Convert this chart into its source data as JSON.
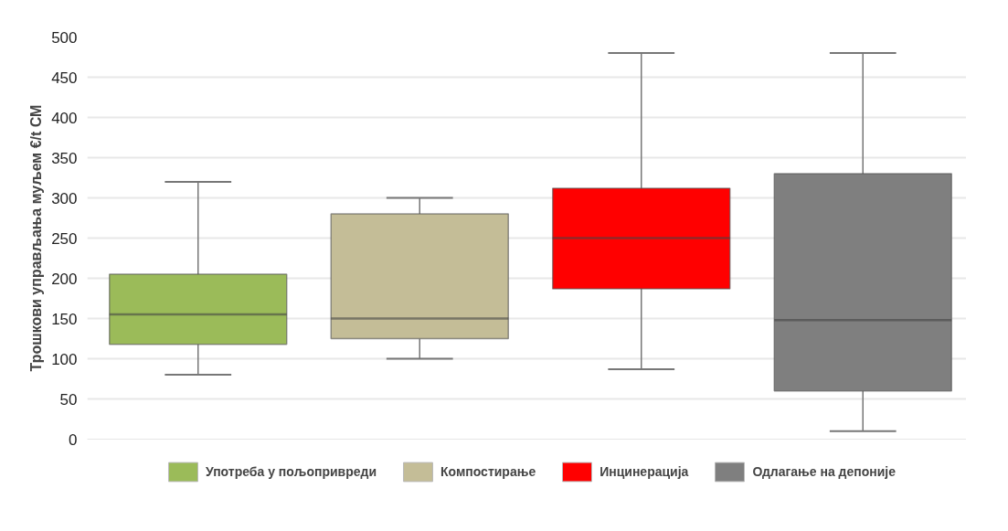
{
  "chart_data": {
    "type": "box",
    "ylabel": "Трошкови управљања муљем €/t СМ",
    "categories": [
      null,
      null,
      null,
      null
    ],
    "ylim": [
      0,
      500
    ],
    "yticks": [
      0,
      50,
      100,
      150,
      200,
      250,
      300,
      350,
      400,
      450,
      500
    ],
    "grid": "y",
    "legend": "bottom",
    "tick_labels": "y",
    "series": [
      {
        "name": "Употреба у пољопривреди",
        "color": "#9bbb59",
        "boxes": [
          {
            "low": 80,
            "q1": 118,
            "median": 155,
            "q3": 205,
            "high": 320
          },
          null,
          null,
          null
        ]
      },
      {
        "name": "Компостирање",
        "color": "#c4bd97",
        "boxes": [
          null,
          {
            "low": 100,
            "q1": 125,
            "median": 150,
            "q3": 280,
            "high": 300
          },
          null,
          null
        ]
      },
      {
        "name": "Инцинерација",
        "color": "#ff0000",
        "boxes": [
          null,
          null,
          {
            "low": 87,
            "q1": 187,
            "median": 250,
            "q3": 312,
            "high": 480
          },
          null
        ]
      },
      {
        "name": "Одлагање на депоније",
        "color": "#7f7f7f",
        "boxes": [
          null,
          null,
          null,
          {
            "low": 10,
            "q1": 60,
            "median": 148,
            "q3": 330,
            "high": 480
          }
        ]
      }
    ]
  }
}
